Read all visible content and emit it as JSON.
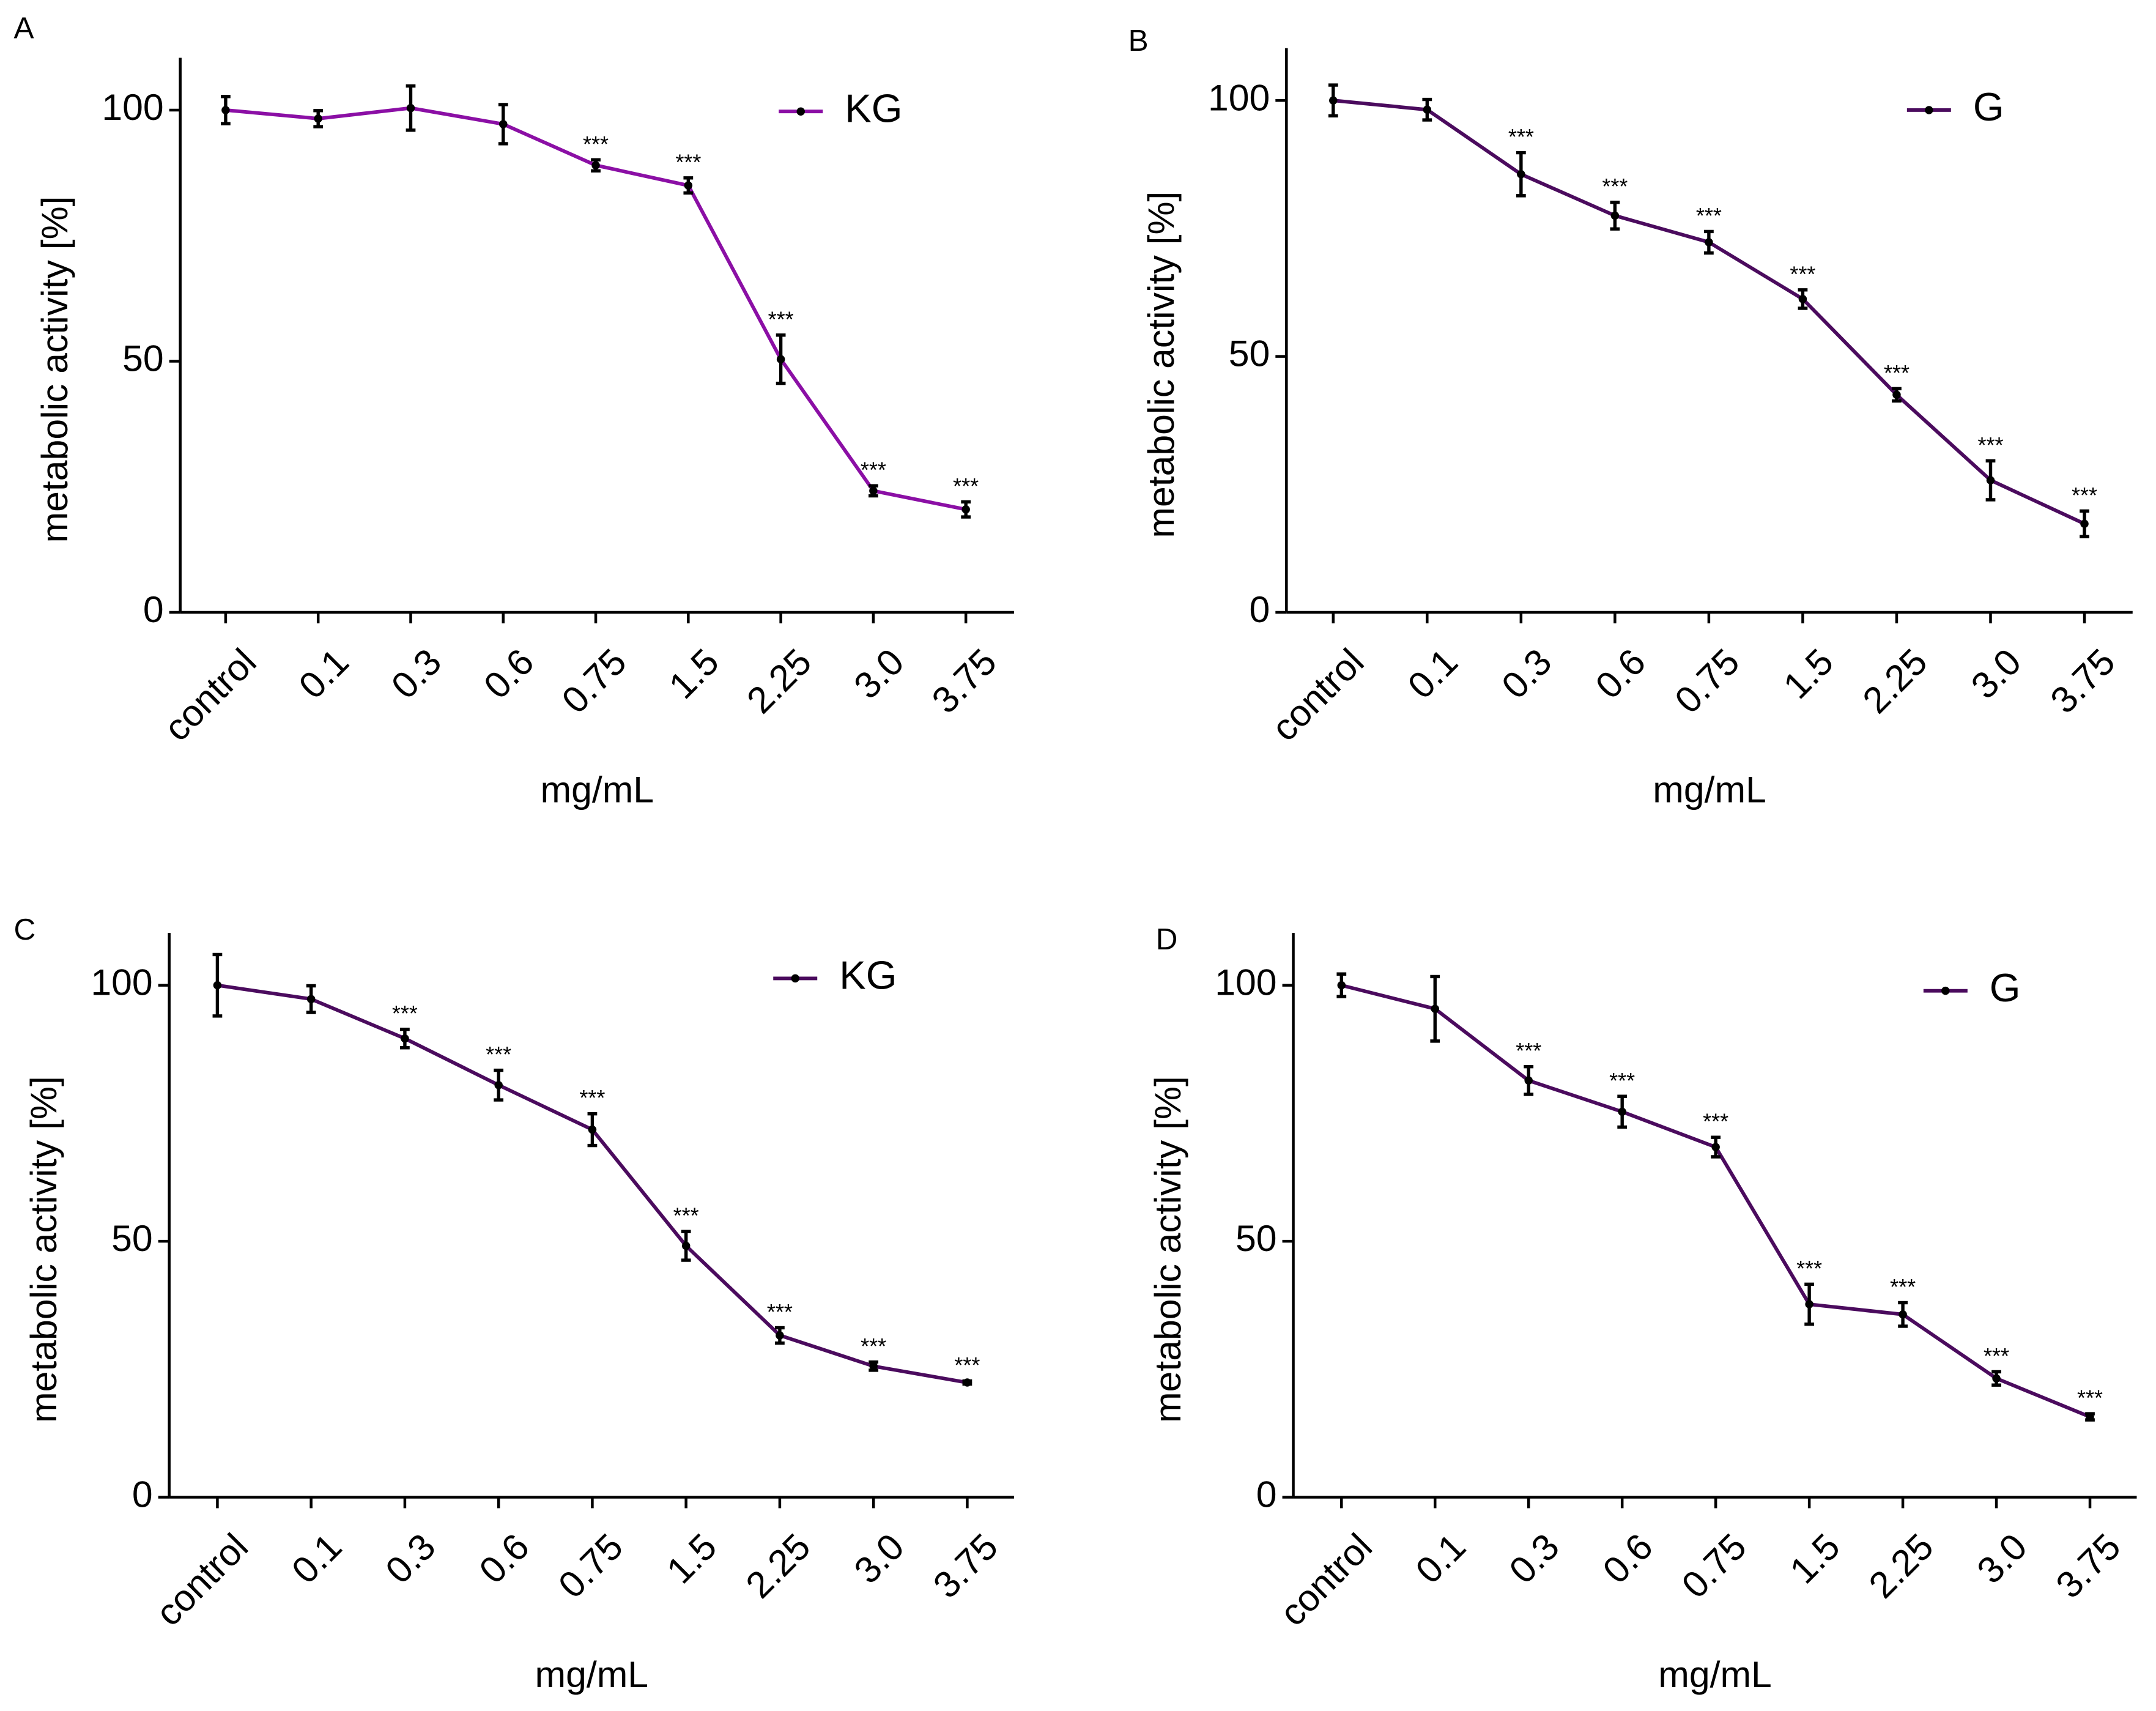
{
  "chart_data": [
    {
      "panel_label": "A",
      "type": "line",
      "categories": [
        "control",
        "0.1",
        "0.3",
        "0.6",
        "0.75",
        "1.5",
        "2.25",
        "3.0",
        "3.75"
      ],
      "series": [
        {
          "name": "KG",
          "color": "#8B0FA5",
          "values": [
            100,
            98.3,
            100.4,
            97.2,
            89,
            85,
            50.4,
            24.2,
            20.5
          ],
          "errors": [
            2.7,
            1.6,
            4.4,
            3.9,
            1.1,
            1.5,
            4.8,
            1.0,
            1.5
          ],
          "significance": [
            "",
            "",
            "",
            "",
            "***",
            "***",
            "***",
            "***",
            "***"
          ]
        }
      ],
      "xlabel": "mg/mL",
      "ylabel": "metabolic activity [%]",
      "ylim": [
        0,
        110
      ],
      "yticks": [
        "0",
        "50",
        "100"
      ],
      "legend_position": "top-right"
    },
    {
      "panel_label": "B",
      "type": "line",
      "categories": [
        "control",
        "0.1",
        "0.3",
        "0.6",
        "0.75",
        "1.5",
        "2.25",
        "3.0",
        "3.75"
      ],
      "series": [
        {
          "name": "G",
          "color": "#4B0B5E",
          "values": [
            100,
            98.2,
            85.6,
            77.5,
            72.3,
            61.2,
            42.5,
            25.8,
            17.3
          ],
          "errors": [
            3.0,
            2.0,
            4.2,
            2.6,
            2.1,
            1.8,
            1.2,
            3.8,
            2.5
          ],
          "significance": [
            "",
            "",
            "***",
            "***",
            "***",
            "***",
            "***",
            "***",
            "***"
          ]
        }
      ],
      "xlabel": "mg/mL",
      "ylabel": "metabolic activity [%]",
      "ylim": [
        0,
        110
      ],
      "yticks": [
        "0",
        "50",
        "100"
      ],
      "legend_position": "top-right"
    },
    {
      "panel_label": "C",
      "type": "line",
      "categories": [
        "control",
        "0.1",
        "0.3",
        "0.6",
        "0.75",
        "1.5",
        "2.25",
        "3.0",
        "3.75"
      ],
      "series": [
        {
          "name": "KG",
          "color": "#4B0B5E",
          "values": [
            100,
            97.3,
            89.6,
            80.5,
            71.8,
            49.1,
            31.6,
            25.6,
            22.4
          ],
          "errors": [
            6.0,
            2.6,
            1.8,
            2.9,
            3.1,
            2.8,
            1.5,
            0.8,
            0.3
          ],
          "significance": [
            "",
            "",
            "***",
            "***",
            "***",
            "***",
            "***",
            "***",
            "***"
          ]
        }
      ],
      "xlabel": "mg/mL",
      "ylabel": "metabolic activity [%]",
      "ylim": [
        0,
        110
      ],
      "yticks": [
        "0",
        "50",
        "100"
      ],
      "legend_position": "top-right"
    },
    {
      "panel_label": "D",
      "type": "line",
      "categories": [
        "control",
        "0.1",
        "0.3",
        "0.6",
        "0.75",
        "1.5",
        "2.25",
        "3.0",
        "3.75"
      ],
      "series": [
        {
          "name": "G",
          "color": "#4B0B5E",
          "values": [
            100,
            95.4,
            81.4,
            75.3,
            68.4,
            37.7,
            35.7,
            23.2,
            15.7
          ],
          "errors": [
            2.2,
            6.3,
            2.7,
            3.0,
            1.9,
            3.9,
            2.3,
            1.3,
            0.6
          ],
          "significance": [
            "",
            "",
            "***",
            "***",
            "***",
            "***",
            "***",
            "***",
            "***"
          ]
        }
      ],
      "xlabel": "mg/mL",
      "ylabel": "metabolic activity [%]",
      "ylim": [
        0,
        110
      ],
      "yticks": [
        "0",
        "50",
        "100"
      ],
      "legend_position": "top-right"
    }
  ]
}
